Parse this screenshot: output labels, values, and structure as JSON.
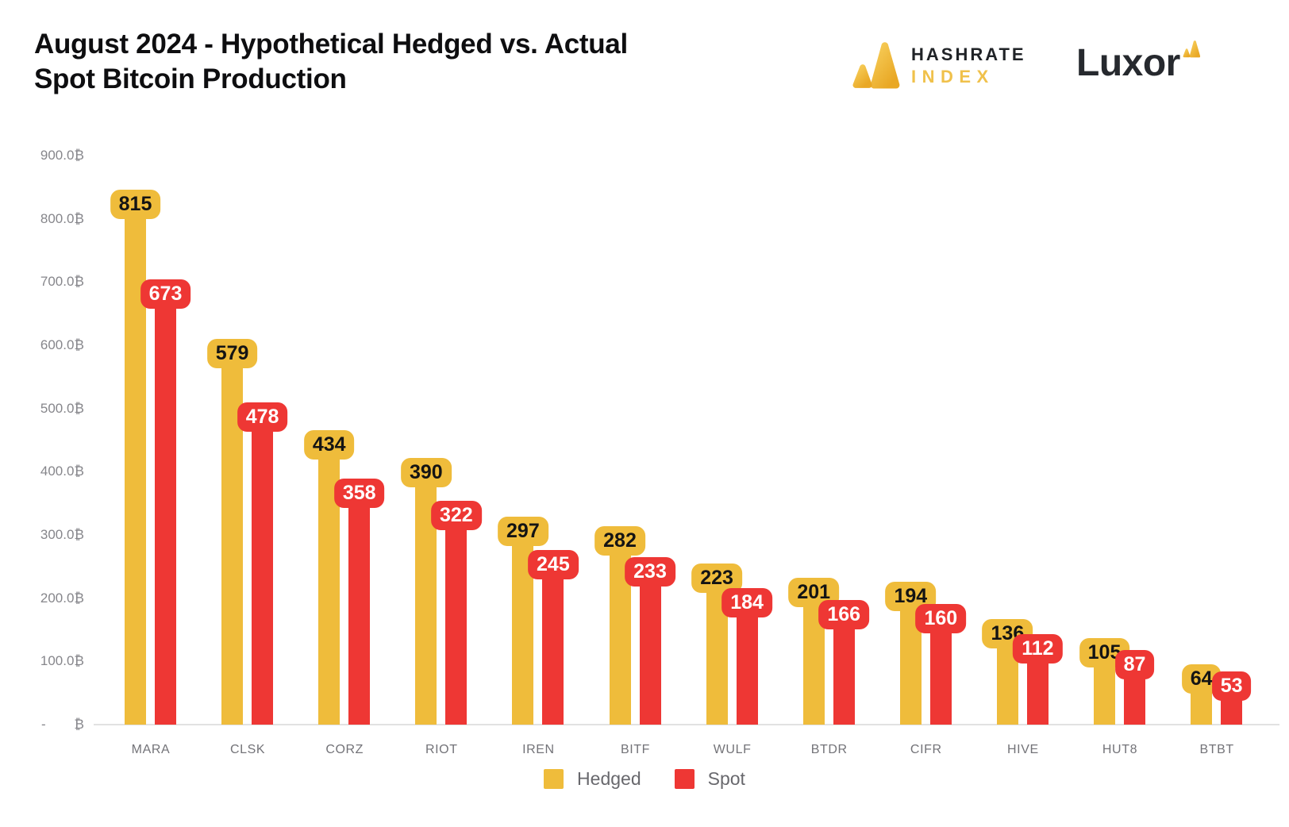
{
  "header": {
    "title_line1": "August 2024 - Hypothetical Hedged vs. Actual",
    "title_line2": "Spot Bitcoin Production",
    "hashrate_logo": {
      "line1": "HASHRATE",
      "line2": "INDEX"
    },
    "luxor_logo": {
      "text": "Luxor"
    }
  },
  "colors": {
    "hedged_gold": "#EFBC3B",
    "spot_red": "#EE3734",
    "hedged_label_text": "#141414",
    "spot_label_text": "#FFFFFF",
    "axis_text": "#86868B",
    "category_text": "#737378",
    "legend_text": "#68686D",
    "baseline_line": "#E2E2E2",
    "title_text": "#0E0E10",
    "logo_gold_light": "#F7CE5B",
    "logo_gold_dark": "#E9A825"
  },
  "chart_data": {
    "type": "bar",
    "title": "August 2024 - Hypothetical Hedged vs. Actual Spot Bitcoin Production",
    "categories": [
      "MARA",
      "CLSK",
      "CORZ",
      "RIOT",
      "IREN",
      "BITF",
      "WULF",
      "BTDR",
      "CIFR",
      "HIVE",
      "HUT8",
      "BTBT"
    ],
    "series": [
      {
        "name": "Hedged",
        "color": "#EFBC3B",
        "label_text_color": "#141414",
        "values": [
          815,
          579,
          434,
          390,
          297,
          282,
          223,
          201,
          194,
          136,
          105,
          64
        ]
      },
      {
        "name": "Spot",
        "color": "#EE3734",
        "label_text_color": "#FFFFFF",
        "values": [
          673,
          478,
          358,
          322,
          245,
          233,
          184,
          166,
          160,
          112,
          87,
          53
        ]
      }
    ],
    "ylim": [
      0,
      900
    ],
    "y_unit": "₿",
    "y_tick_labels": [
      "900.0₿",
      "800.0₿",
      "700.0₿",
      "600.0₿",
      "500.0₿",
      "400.0₿",
      "300.0₿",
      "200.0₿",
      "100.0₿"
    ],
    "zero_tick": {
      "dash": "-",
      "symbol": "₿"
    },
    "grid": false,
    "legend_position": "bottom",
    "legend": [
      {
        "label": "Hedged",
        "color": "#EFBC3B"
      },
      {
        "label": "Spot",
        "color": "#EE3734"
      }
    ]
  }
}
